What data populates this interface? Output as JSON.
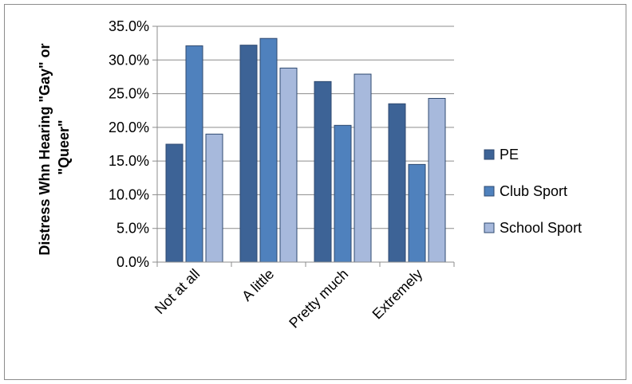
{
  "chart_data": {
    "type": "bar",
    "title": "",
    "xlabel": "",
    "ylabel_lines": [
      "Distress Whn Hearing \"Gay\" or",
      "\"Queer\""
    ],
    "categories": [
      "Not at all",
      "A little",
      "Pretty much",
      "Extremely"
    ],
    "series": [
      {
        "name": "PE",
        "values": [
          17.5,
          32.2,
          26.8,
          23.5
        ],
        "color": "#3d6396"
      },
      {
        "name": "Club Sport",
        "values": [
          32.1,
          33.2,
          20.3,
          14.5
        ],
        "color": "#4f81bd"
      },
      {
        "name": "School Sport",
        "values": [
          19.0,
          28.8,
          27.9,
          24.3
        ],
        "color": "#a7b9dc"
      }
    ],
    "yticks": [
      "0.0%",
      "5.0%",
      "10.0%",
      "15.0%",
      "20.0%",
      "25.0%",
      "30.0%",
      "35.0%"
    ],
    "ylim": [
      0,
      35
    ],
    "grid": true,
    "legend_position": "right"
  }
}
